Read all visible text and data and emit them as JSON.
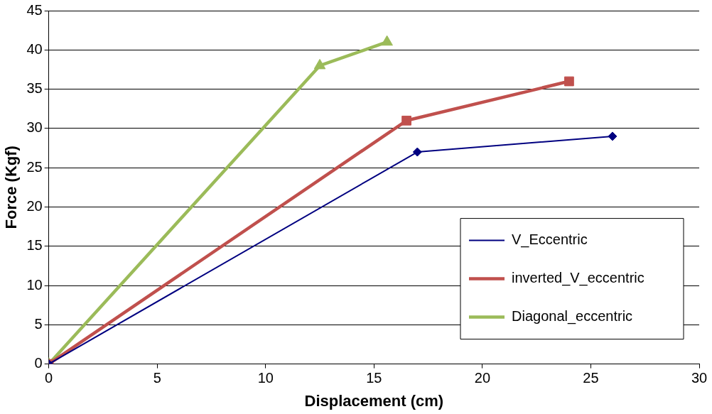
{
  "chart_data": {
    "type": "line",
    "xlabel": "Displacement (cm)",
    "ylabel": "Force (Kgf)",
    "xlim": [
      0,
      30
    ],
    "xticks": [
      0,
      5,
      10,
      15,
      20,
      25,
      30
    ],
    "ylim": [
      0,
      45
    ],
    "yticks": [
      0,
      5,
      10,
      15,
      20,
      25,
      30,
      35,
      40,
      45
    ],
    "grid": "y",
    "legend": "bottom right",
    "series": [
      {
        "name": "V_Eccentric",
        "color": "#000080",
        "marker": "diamond",
        "x": [
          0,
          17,
          26
        ],
        "values": [
          0,
          27,
          29
        ]
      },
      {
        "name": "inverted_V_eccentric",
        "color": "#c0504d",
        "marker": "square",
        "x": [
          0,
          16.5,
          24
        ],
        "values": [
          0,
          31,
          36
        ]
      },
      {
        "name": "Diagonal_eccentric",
        "color": "#9bbb59",
        "marker": "triangle",
        "x": [
          0,
          12.5,
          15.6
        ],
        "values": [
          0,
          38,
          41
        ]
      }
    ]
  }
}
